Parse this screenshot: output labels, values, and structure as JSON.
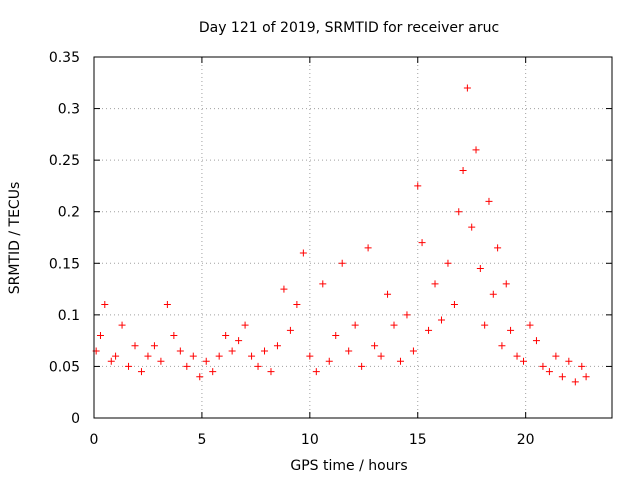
{
  "chart_data": {
    "type": "scatter",
    "title": "Day 121 of 2019, SRMTID for receiver aruc",
    "xlabel": "GPS time / hours",
    "ylabel": "SRMTID / TECUs",
    "xlim": [
      0,
      24
    ],
    "ylim": [
      0,
      0.35
    ],
    "grid": true,
    "marker": "+",
    "xticks": [
      0,
      5,
      10,
      15,
      20
    ],
    "xtick_labels": [
      "0",
      "5",
      "10",
      "15",
      "20"
    ],
    "yticks": [
      0,
      0.05,
      0.1,
      0.15,
      0.2,
      0.25,
      0.3,
      0.35
    ],
    "ytick_labels": [
      "0",
      "0.05",
      "0.1",
      "0.15",
      "0.2",
      "0.25",
      "0.3",
      "0.35"
    ],
    "series": [
      {
        "name": "SRMTID",
        "color": "#ff0000",
        "points_note": "dense scatter, ~0.03-0.12 baseline, peak near 17h",
        "x": [
          0.1,
          0.3,
          0.5,
          0.8,
          1.0,
          1.3,
          1.6,
          1.9,
          2.2,
          2.5,
          2.8,
          3.1,
          3.4,
          3.7,
          4.0,
          4.3,
          4.6,
          4.9,
          5.2,
          5.5,
          5.8,
          6.1,
          6.4,
          6.7,
          7.0,
          7.3,
          7.6,
          7.9,
          8.2,
          8.5,
          8.8,
          9.1,
          9.4,
          9.7,
          10.0,
          10.3,
          10.6,
          10.9,
          11.2,
          11.5,
          11.8,
          12.1,
          12.4,
          12.7,
          13.0,
          13.3,
          13.6,
          13.9,
          14.2,
          14.5,
          14.8,
          15.0,
          15.2,
          15.5,
          15.8,
          16.1,
          16.4,
          16.7,
          16.9,
          17.1,
          17.3,
          17.5,
          17.7,
          17.9,
          18.1,
          18.3,
          18.5,
          18.7,
          18.9,
          19.1,
          19.3,
          19.6,
          19.9,
          20.2,
          20.5,
          20.8,
          21.1,
          21.4,
          21.7,
          22.0,
          22.3,
          22.6,
          22.8
        ],
        "y": [
          0.065,
          0.08,
          0.11,
          0.055,
          0.06,
          0.09,
          0.05,
          0.07,
          0.045,
          0.06,
          0.07,
          0.055,
          0.11,
          0.08,
          0.065,
          0.05,
          0.06,
          0.04,
          0.055,
          0.045,
          0.06,
          0.08,
          0.065,
          0.075,
          0.09,
          0.06,
          0.05,
          0.065,
          0.045,
          0.07,
          0.125,
          0.085,
          0.11,
          0.16,
          0.06,
          0.045,
          0.13,
          0.055,
          0.08,
          0.15,
          0.065,
          0.09,
          0.05,
          0.165,
          0.07,
          0.06,
          0.12,
          0.09,
          0.055,
          0.1,
          0.065,
          0.225,
          0.17,
          0.085,
          0.13,
          0.095,
          0.15,
          0.11,
          0.2,
          0.24,
          0.32,
          0.185,
          0.26,
          0.145,
          0.09,
          0.21,
          0.12,
          0.165,
          0.07,
          0.13,
          0.085,
          0.06,
          0.055,
          0.09,
          0.075,
          0.05,
          0.045,
          0.06,
          0.04,
          0.055,
          0.035,
          0.05,
          0.04
        ]
      }
    ]
  }
}
